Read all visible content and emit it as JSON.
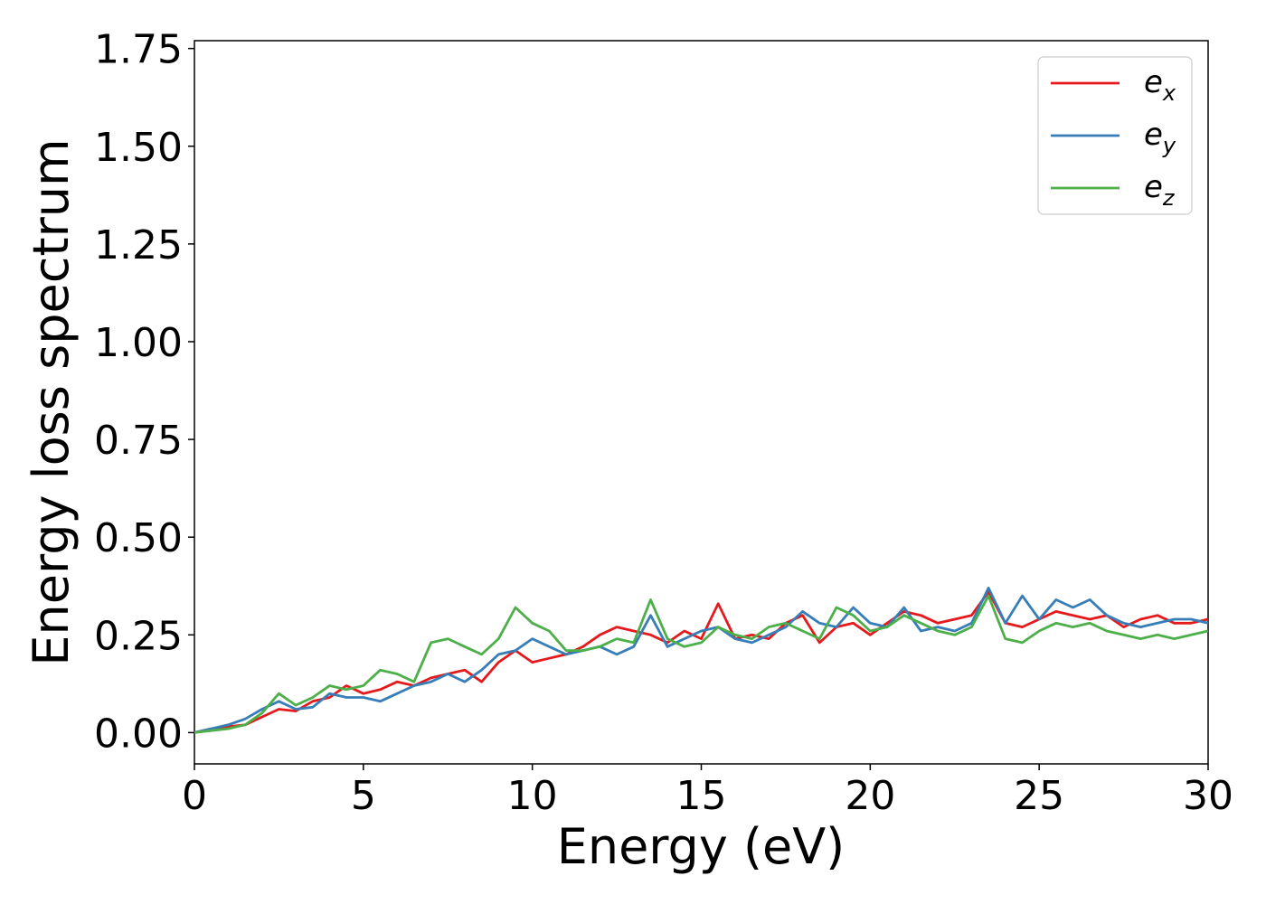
{
  "chart_data": {
    "type": "line",
    "title": "",
    "xlabel": "Energy (eV)",
    "ylabel": "Energy loss spectrum",
    "xlim": [
      0,
      30
    ],
    "ylim": [
      -0.08,
      1.77
    ],
    "xticks": [
      "0",
      "5",
      "10",
      "15",
      "20",
      "25",
      "30"
    ],
    "yticks": [
      "0.00",
      "0.25",
      "0.50",
      "0.75",
      "1.00",
      "1.25",
      "1.50",
      "1.75"
    ],
    "grid": false,
    "legend_position": "top-right",
    "x": [
      0,
      0.5,
      1,
      1.5,
      2,
      2.5,
      3,
      3.5,
      4,
      4.5,
      5,
      5.5,
      6,
      6.5,
      7,
      7.5,
      8,
      8.5,
      9,
      9.5,
      10,
      10.5,
      11,
      11.5,
      12,
      12.5,
      13,
      13.5,
      14,
      14.5,
      15,
      15.5,
      16,
      16.5,
      17,
      17.5,
      18,
      18.5,
      19,
      19.5,
      20,
      20.5,
      21,
      21.5,
      22,
      22.5,
      23,
      23.5,
      24,
      24.5,
      25,
      25.5,
      26,
      26.5,
      27,
      27.5,
      28,
      28.5,
      29,
      29.5,
      30
    ],
    "series": [
      {
        "name_base": "e",
        "name_sub": "x",
        "color": "#e41a1c",
        "values": [
          0.0,
          0.01,
          0.015,
          0.02,
          0.04,
          0.06,
          0.055,
          0.08,
          0.09,
          0.12,
          0.1,
          0.11,
          0.13,
          0.12,
          0.14,
          0.15,
          0.16,
          0.13,
          0.18,
          0.21,
          0.18,
          0.19,
          0.2,
          0.22,
          0.25,
          0.27,
          0.26,
          0.25,
          0.23,
          0.26,
          0.24,
          0.33,
          0.24,
          0.25,
          0.24,
          0.28,
          0.3,
          0.23,
          0.27,
          0.28,
          0.25,
          0.28,
          0.31,
          0.3,
          0.28,
          0.29,
          0.3,
          0.36,
          0.28,
          0.27,
          0.29,
          0.31,
          0.3,
          0.29,
          0.3,
          0.27,
          0.29,
          0.3,
          0.28,
          0.28,
          0.29
        ]
      },
      {
        "name_base": "e",
        "name_sub": "y",
        "color": "#377eb8",
        "values": [
          0.0,
          0.01,
          0.02,
          0.035,
          0.06,
          0.08,
          0.06,
          0.065,
          0.1,
          0.09,
          0.09,
          0.08,
          0.1,
          0.12,
          0.13,
          0.15,
          0.13,
          0.16,
          0.2,
          0.21,
          0.24,
          0.22,
          0.2,
          0.21,
          0.22,
          0.2,
          0.22,
          0.3,
          0.22,
          0.24,
          0.26,
          0.27,
          0.24,
          0.23,
          0.25,
          0.27,
          0.31,
          0.28,
          0.27,
          0.32,
          0.28,
          0.27,
          0.32,
          0.26,
          0.27,
          0.26,
          0.28,
          0.37,
          0.28,
          0.35,
          0.29,
          0.34,
          0.32,
          0.34,
          0.3,
          0.28,
          0.27,
          0.28,
          0.29,
          0.29,
          0.28
        ]
      },
      {
        "name_base": "e",
        "name_sub": "z",
        "color": "#4daf4a",
        "values": [
          0.0,
          0.005,
          0.01,
          0.02,
          0.05,
          0.1,
          0.07,
          0.09,
          0.12,
          0.11,
          0.12,
          0.16,
          0.15,
          0.13,
          0.23,
          0.24,
          0.22,
          0.2,
          0.24,
          0.32,
          0.28,
          0.26,
          0.21,
          0.21,
          0.22,
          0.24,
          0.23,
          0.34,
          0.24,
          0.22,
          0.23,
          0.27,
          0.25,
          0.24,
          0.27,
          0.28,
          0.26,
          0.24,
          0.32,
          0.3,
          0.26,
          0.27,
          0.3,
          0.28,
          0.26,
          0.25,
          0.27,
          0.35,
          0.24,
          0.23,
          0.26,
          0.28,
          0.27,
          0.28,
          0.26,
          0.25,
          0.24,
          0.25,
          0.24,
          0.25,
          0.26
        ]
      }
    ]
  }
}
